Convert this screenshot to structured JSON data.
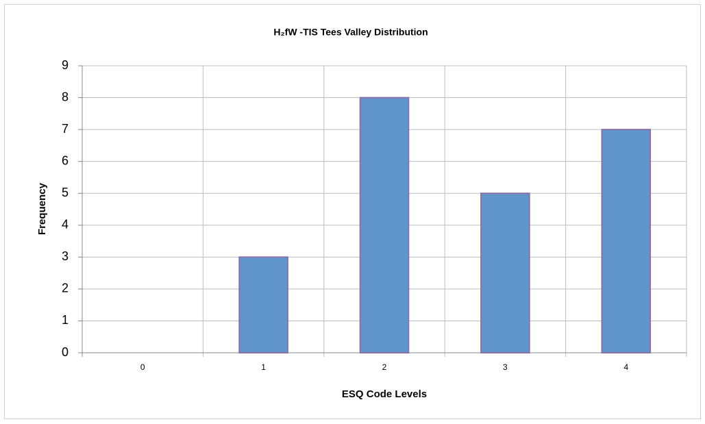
{
  "chart_data": {
    "type": "bar",
    "title": "H₂fW -TIS Tees Valley Distribution",
    "x_label": "ESQ Code Levels",
    "y_label": "Frequency",
    "categories": [
      "0",
      "1",
      "2",
      "3",
      "4"
    ],
    "values": [
      0,
      3,
      8,
      5,
      7
    ],
    "color": "#6096cc",
    "ylim": [
      0,
      9
    ],
    "yticks": [
      0,
      1,
      2,
      3,
      4,
      5,
      6,
      7,
      8,
      9
    ],
    "grid": true
  }
}
